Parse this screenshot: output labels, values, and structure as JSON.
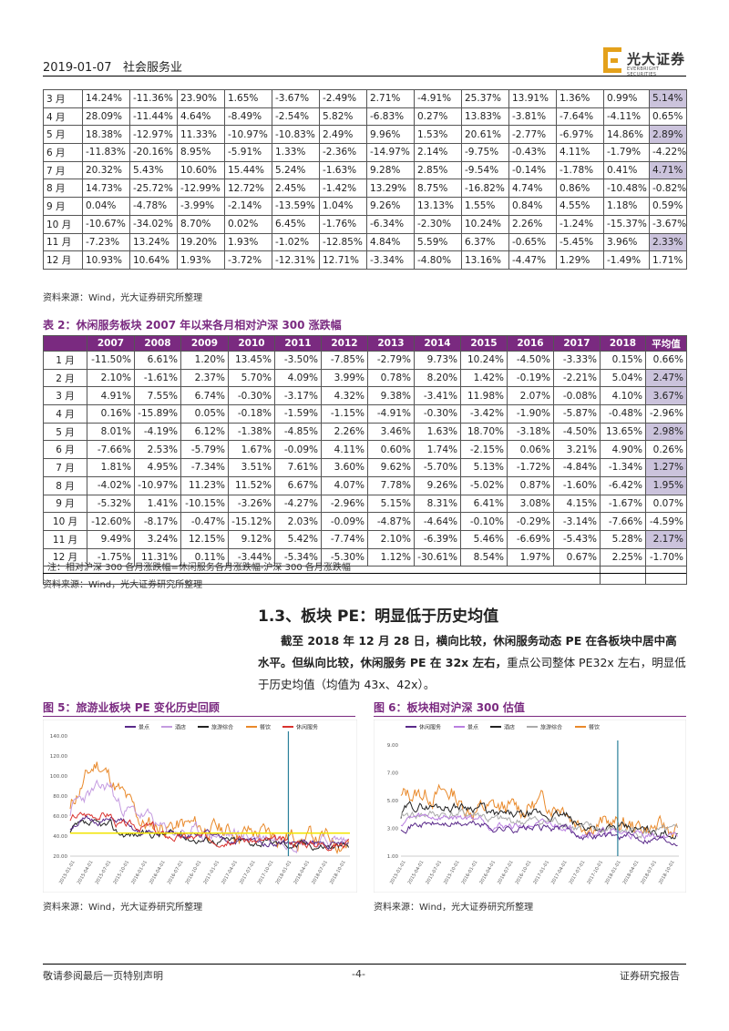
{
  "header": {
    "date": "2019-01-07",
    "industry": "社会服务业",
    "logo_cn": "光大证券",
    "logo_en": "EVERBRIGHT SECURITIES"
  },
  "table1": {
    "rows": [
      {
        "m": "3 月",
        "v": [
          "14.24%",
          "-11.36%",
          "23.90%",
          "1.65%",
          "-3.67%",
          "-2.49%",
          "2.71%",
          "-4.91%",
          "25.37%",
          "13.91%",
          "1.36%",
          "0.99%",
          "5.14%"
        ],
        "hl": true
      },
      {
        "m": "4 月",
        "v": [
          "28.09%",
          "-11.44%",
          "4.64%",
          "-8.49%",
          "-2.54%",
          "5.82%",
          "-6.83%",
          "0.27%",
          "13.83%",
          "-3.81%",
          "-7.64%",
          "-4.11%",
          "0.65%"
        ],
        "hl": false
      },
      {
        "m": "5 月",
        "v": [
          "18.38%",
          "-12.97%",
          "11.33%",
          "-10.97%",
          "-10.83%",
          "2.49%",
          "9.96%",
          "1.53%",
          "20.61%",
          "-2.77%",
          "-6.97%",
          "14.86%",
          "2.89%"
        ],
        "hl": true
      },
      {
        "m": "6 月",
        "v": [
          "-11.83%",
          "-20.16%",
          "8.95%",
          "-5.91%",
          "1.33%",
          "-2.36%",
          "-14.97%",
          "2.14%",
          "-9.75%",
          "-0.43%",
          "4.11%",
          "-1.79%",
          "-4.22%"
        ],
        "hl": false
      },
      {
        "m": "7 月",
        "v": [
          "20.32%",
          "5.43%",
          "10.60%",
          "15.44%",
          "5.24%",
          "-1.63%",
          "9.28%",
          "2.85%",
          "-9.54%",
          "-0.14%",
          "-1.78%",
          "0.41%",
          "4.71%"
        ],
        "hl": true
      },
      {
        "m": "8 月",
        "v": [
          "14.73%",
          "-25.72%",
          "-12.99%",
          "12.72%",
          "2.45%",
          "-1.42%",
          "13.29%",
          "8.75%",
          "-16.82%",
          "4.74%",
          "0.86%",
          "-10.48%",
          "-0.82%"
        ],
        "hl": false
      },
      {
        "m": "9 月",
        "v": [
          "0.04%",
          "-4.78%",
          "-3.99%",
          "-2.14%",
          "-13.59%",
          "1.04%",
          "9.26%",
          "13.13%",
          "1.55%",
          "0.84%",
          "4.55%",
          "1.18%",
          "0.59%"
        ],
        "hl": false
      },
      {
        "m": "10 月",
        "v": [
          "-10.67%",
          "-34.02%",
          "8.70%",
          "0.02%",
          "6.45%",
          "-1.76%",
          "-6.34%",
          "-2.30%",
          "10.24%",
          "2.26%",
          "-1.24%",
          "-15.37%",
          "-3.67%"
        ],
        "hl": false
      },
      {
        "m": "11 月",
        "v": [
          "-7.23%",
          "13.24%",
          "19.20%",
          "1.93%",
          "-1.02%",
          "-12.85%",
          "4.84%",
          "5.59%",
          "6.37%",
          "-0.65%",
          "-5.45%",
          "3.96%",
          "2.33%"
        ],
        "hl": true
      },
      {
        "m": "12 月",
        "v": [
          "10.93%",
          "10.64%",
          "1.93%",
          "-3.72%",
          "-12.31%",
          "12.71%",
          "-3.34%",
          "-4.80%",
          "13.16%",
          "-4.47%",
          "1.29%",
          "-1.49%",
          "1.71%"
        ],
        "hl": false
      }
    ],
    "source": "资料来源：Wind，光大证券研究所整理"
  },
  "table2": {
    "caption": "表 2：休闲服务板块 2007 年以来各月相对沪深 300 涨跌幅",
    "headers": [
      "",
      "2007",
      "2008",
      "2009",
      "2010",
      "2011",
      "2012",
      "2013",
      "2014",
      "2015",
      "2016",
      "2017",
      "2018",
      "平均值"
    ],
    "rows": [
      {
        "m": "1 月",
        "v": [
          "-11.50%",
          "6.61%",
          "1.20%",
          "13.45%",
          "-3.50%",
          "-7.85%",
          "-2.79%",
          "9.73%",
          "10.24%",
          "-4.50%",
          "-3.33%",
          "0.15%",
          "0.66%"
        ],
        "hl": false
      },
      {
        "m": "2 月",
        "v": [
          "2.10%",
          "-1.61%",
          "2.37%",
          "5.70%",
          "4.09%",
          "3.99%",
          "0.78%",
          "8.20%",
          "1.42%",
          "-0.19%",
          "-2.21%",
          "5.04%",
          "2.47%"
        ],
        "hl": true
      },
      {
        "m": "3 月",
        "v": [
          "4.91%",
          "7.55%",
          "6.74%",
          "-0.30%",
          "-3.17%",
          "4.32%",
          "9.38%",
          "-3.41%",
          "11.98%",
          "2.07%",
          "-0.08%",
          "4.10%",
          "3.67%"
        ],
        "hl": true
      },
      {
        "m": "4 月",
        "v": [
          "0.16%",
          "-15.89%",
          "0.05%",
          "-0.18%",
          "-1.59%",
          "-1.15%",
          "-4.91%",
          "-0.30%",
          "-3.42%",
          "-1.90%",
          "-5.87%",
          "-0.48%",
          "-2.96%"
        ],
        "hl": false
      },
      {
        "m": "5 月",
        "v": [
          "8.01%",
          "-4.19%",
          "6.12%",
          "-1.38%",
          "-4.85%",
          "2.26%",
          "3.46%",
          "1.63%",
          "18.70%",
          "-3.18%",
          "-4.50%",
          "13.65%",
          "2.98%"
        ],
        "hl": true
      },
      {
        "m": "6 月",
        "v": [
          "-7.66%",
          "2.53%",
          "-5.79%",
          "1.67%",
          "-0.09%",
          "4.11%",
          "0.60%",
          "1.74%",
          "-2.15%",
          "0.06%",
          "3.21%",
          "4.90%",
          "0.26%"
        ],
        "hl": false
      },
      {
        "m": "7 月",
        "v": [
          "1.81%",
          "4.95%",
          "-7.34%",
          "3.51%",
          "7.61%",
          "3.60%",
          "9.62%",
          "-5.70%",
          "5.13%",
          "-1.72%",
          "-4.84%",
          "-1.34%",
          "1.27%"
        ],
        "hl": true
      },
      {
        "m": "8 月",
        "v": [
          "-4.02%",
          "-10.97%",
          "11.23%",
          "11.52%",
          "6.67%",
          "4.07%",
          "7.78%",
          "9.26%",
          "-5.02%",
          "0.87%",
          "-1.60%",
          "-6.42%",
          "1.95%"
        ],
        "hl": true
      },
      {
        "m": "9 月",
        "v": [
          "-5.32%",
          "1.41%",
          "-10.15%",
          "-3.26%",
          "-4.27%",
          "-2.96%",
          "5.15%",
          "8.31%",
          "6.41%",
          "3.08%",
          "4.15%",
          "-1.67%",
          "0.07%"
        ],
        "hl": false
      },
      {
        "m": "10 月",
        "v": [
          "-12.60%",
          "-8.17%",
          "-0.47%",
          "-15.12%",
          "2.03%",
          "-0.09%",
          "-4.87%",
          "-4.64%",
          "-0.10%",
          "-0.29%",
          "-3.14%",
          "-7.66%",
          "-4.59%"
        ],
        "hl": false
      },
      {
        "m": "11 月",
        "v": [
          "9.49%",
          "3.24%",
          "12.15%",
          "9.12%",
          "5.42%",
          "-7.74%",
          "2.10%",
          "-6.39%",
          "5.46%",
          "-6.69%",
          "-5.43%",
          "5.28%",
          "2.17%"
        ],
        "hl": true
      },
      {
        "m": "12 月",
        "v": [
          "-1.75%",
          "11.31%",
          "0.11%",
          "-3.44%",
          "-5.34%",
          "-5.30%",
          "1.12%",
          "-30.61%",
          "8.54%",
          "1.97%",
          "0.67%",
          "2.25%",
          "-1.70%"
        ],
        "hl": false
      }
    ],
    "note": "注：相对沪深 300 各月涨跌幅=休闲服务各月涨跌幅-沪深 300 各月涨跌幅",
    "source": "资料来源：Wind，光大证券研究所整理"
  },
  "section": {
    "title": "1.3、板块 PE：明显低于历史均值",
    "para_bold": "截至 2018 年 12 月 28 日，横向比较，休闲服务动态 PE 在各板块中居中高水平。但纵向比较，休闲服务 PE 在 32x 左右，",
    "para_normal": "重点公司整体 PE32x 左右，明显低于历史均值（均值为 43x、42x）。"
  },
  "fig5": {
    "caption": "图 5：旅游业板块 PE 变化历史回顾",
    "source": "资料来源：Wind，光大证券研究所整理",
    "legend": [
      "景点",
      "酒店",
      "旅游综合",
      "餐饮",
      "休闲服务"
    ],
    "colors": [
      "#5a2a8a",
      "#c49be0",
      "#222222",
      "#e9892a",
      "#d9322e"
    ],
    "yticks": [
      "140.00",
      "120.00",
      "100.00",
      "80.00",
      "60.00",
      "40.00",
      "20.00"
    ],
    "xticks": [
      "2015-01-01",
      "2015-04-01",
      "2015-07-01",
      "2015-10-01",
      "2016-01-01",
      "2016-04-01",
      "2016-07-01",
      "2016-10-01",
      "2017-01-01",
      "2017-04-01",
      "2017-07-01",
      "2017-10-01",
      "2018-01-01",
      "2018-04-01",
      "2018-07-01",
      "2018-10-01"
    ]
  },
  "fig6": {
    "caption": "图 6：板块相对沪深 300 估值",
    "source": "资料来源：Wind，光大证券研究所整理",
    "legend": [
      "休闲服务",
      "景点",
      "酒店",
      "旅游综合",
      "餐饮"
    ],
    "colors": [
      "#5a2a8a",
      "#b97fe0",
      "#222222",
      "#aaaaaa",
      "#e9892a"
    ],
    "yticks": [
      "9.00",
      "7.00",
      "5.00",
      "3.00",
      "1.00"
    ],
    "xticks": [
      "2015-01-01",
      "2015-04-01",
      "2015-07-01",
      "2015-10-01",
      "2016-01-01",
      "2016-04-01",
      "2016-07-01",
      "2016-10-01",
      "2017-01-01",
      "2017-04-01",
      "2017-07-01",
      "2017-10-01",
      "2018-01-01",
      "2018-04-01",
      "2018-07-01",
      "2018-10-01"
    ]
  },
  "footer": {
    "left": "敬请参阅最后一页特别声明",
    "center": "-4-",
    "right": "证券研究报告"
  }
}
